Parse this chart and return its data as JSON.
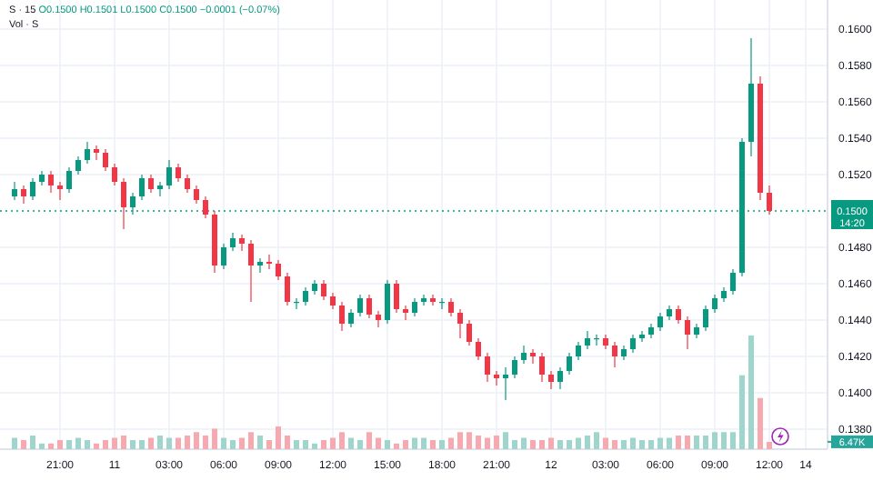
{
  "chart_data": {
    "type": "candlestick",
    "title": "S · 15",
    "y2label": "Vol · S",
    "annotations": [
      "O0.1500 H0.1501 L0.1500 C0.1500 −0.0001 (−0.07%)",
      "14:20"
    ],
    "categories": [
      null,
      null,
      null,
      null,
      null,
      "21:00",
      null,
      null,
      null,
      null,
      null,
      "11",
      null,
      null,
      null,
      null,
      null,
      "03:00",
      null,
      null,
      null,
      null,
      null,
      "06:00",
      null,
      null,
      null,
      null,
      null,
      "09:00",
      null,
      null,
      null,
      null,
      null,
      "12:00",
      null,
      null,
      null,
      null,
      null,
      "15:00",
      null,
      null,
      null,
      null,
      null,
      "18:00",
      null,
      null,
      null,
      null,
      null,
      "21:00",
      null,
      null,
      null,
      null,
      null,
      "12",
      null,
      null,
      null,
      null,
      null,
      "03:00",
      null,
      null,
      null,
      null,
      null,
      "06:00",
      null,
      null,
      null,
      null,
      null,
      "09:00",
      null,
      null,
      null,
      null,
      null,
      "12:00",
      null,
      null,
      null,
      "14"
    ],
    "ylim": [
      0.1369,
      0.1616
    ],
    "y2lim": [
      0,
      395
    ],
    "yticks": [
      {
        "value": 0.138,
        "label": "0.1380"
      },
      {
        "value": 0.14,
        "label": "0.1400"
      },
      {
        "value": 0.142,
        "label": "0.1420"
      },
      {
        "value": 0.144,
        "label": "0.1440"
      },
      {
        "value": 0.146,
        "label": "0.1460"
      },
      {
        "value": 0.148,
        "label": "0.1480"
      },
      {
        "value": 0.152,
        "label": "0.1520"
      },
      {
        "value": 0.154,
        "label": "0.1540"
      },
      {
        "value": 0.156,
        "label": "0.1560"
      },
      {
        "value": 0.158,
        "label": "0.1580"
      },
      {
        "value": 0.16,
        "label": "0.1600"
      }
    ],
    "y2ticks": [
      {
        "value": 6.47,
        "label": "6.47K"
      }
    ],
    "grid": true,
    "ref_lines": [
      {
        "axis": "y",
        "value": 0.15,
        "label": "0.1500",
        "color": "#089981",
        "line_style": "dotted"
      }
    ],
    "series": [
      {
        "type": "candlestick",
        "colors": [
          "#089981",
          "#f23645",
          "#089981",
          "#089981",
          "#f23645",
          "#f23645",
          "#089981",
          "#089981",
          "#089981",
          "#f23645",
          "#f23645",
          "#f23645",
          "#f23645",
          "#089981",
          "#089981",
          "#f23645",
          "#089981",
          "#089981",
          "#f23645",
          "#f23645",
          "#f23645",
          "#f23645",
          "#f23645",
          "#089981",
          "#089981",
          "#f23645",
          "#f23645",
          "#089981",
          "#f23645",
          "#f23645",
          "#f23645",
          "#089981",
          "#089981",
          "#089981",
          "#f23645",
          "#f23645",
          "#f23645",
          "#089981",
          "#089981",
          "#f23645",
          "#f23645",
          "#089981",
          "#f23645",
          "#f23645",
          "#089981",
          "#089981",
          "#f23645",
          "#089981",
          "#f23645",
          "#f23645",
          "#f23645",
          "#f23645",
          "#f23645",
          "#f23645",
          "#089981",
          "#089981",
          "#089981",
          "#f23645",
          "#f23645",
          "#f23645",
          "#089981",
          "#089981",
          "#089981",
          "#089981",
          "#089981",
          "#f23645",
          "#f23645",
          "#089981",
          "#089981",
          "#089981",
          "#089981",
          "#089981",
          "#089981",
          "#f23645",
          "#f23645",
          "#089981",
          "#089981",
          "#089981",
          "#089981",
          "#089981",
          "#089981",
          "#089981",
          "#f23645",
          "#f23645",
          null,
          null,
          null,
          null
        ],
        "ohlc": [
          [
            0.1508,
            0.1516,
            0.1506,
            0.1512
          ],
          [
            0.1512,
            0.1514,
            0.1504,
            0.1508
          ],
          [
            0.1508,
            0.1518,
            0.1506,
            0.1516
          ],
          [
            0.1516,
            0.1522,
            0.1514,
            0.152
          ],
          [
            0.152,
            0.1522,
            0.151,
            0.1514
          ],
          [
            0.1514,
            0.1516,
            0.1506,
            0.1512
          ],
          [
            0.1512,
            0.1524,
            0.151,
            0.1522
          ],
          [
            0.1522,
            0.153,
            0.152,
            0.1528
          ],
          [
            0.1528,
            0.1538,
            0.1526,
            0.1534
          ],
          [
            0.1534,
            0.1536,
            0.1528,
            0.1532
          ],
          [
            0.1532,
            0.1534,
            0.1522,
            0.1524
          ],
          [
            0.1524,
            0.1526,
            0.1514,
            0.1516
          ],
          [
            0.1516,
            0.1518,
            0.149,
            0.1502
          ],
          [
            0.1502,
            0.151,
            0.1498,
            0.1508
          ],
          [
            0.1508,
            0.152,
            0.1506,
            0.1518
          ],
          [
            0.1518,
            0.152,
            0.151,
            0.1512
          ],
          [
            0.1512,
            0.1516,
            0.1508,
            0.1514
          ],
          [
            0.1514,
            0.1528,
            0.1512,
            0.1524
          ],
          [
            0.1524,
            0.1526,
            0.1516,
            0.1518
          ],
          [
            0.1518,
            0.152,
            0.151,
            0.1512
          ],
          [
            0.1512,
            0.1514,
            0.1504,
            0.1506
          ],
          [
            0.1506,
            0.1508,
            0.1496,
            0.1498
          ],
          [
            0.1498,
            0.15,
            0.1466,
            0.147
          ],
          [
            0.147,
            0.1482,
            0.1468,
            0.148
          ],
          [
            0.148,
            0.1488,
            0.1478,
            0.1485
          ],
          [
            0.1485,
            0.1487,
            0.1478,
            0.1482
          ],
          [
            0.1482,
            0.1484,
            0.145,
            0.147
          ],
          [
            0.147,
            0.1474,
            0.1466,
            0.1472
          ],
          [
            0.1472,
            0.1476,
            0.1468,
            0.1471
          ],
          [
            0.1471,
            0.1473,
            0.1462,
            0.1464
          ],
          [
            0.1464,
            0.1466,
            0.1448,
            0.145
          ],
          [
            0.145,
            0.1452,
            0.1446,
            0.145
          ],
          [
            0.145,
            0.1458,
            0.1448,
            0.1456
          ],
          [
            0.1456,
            0.1462,
            0.1454,
            0.146
          ],
          [
            0.146,
            0.1462,
            0.1451,
            0.1453
          ],
          [
            0.1453,
            0.1455,
            0.1446,
            0.1448
          ],
          [
            0.1448,
            0.145,
            0.1434,
            0.1438
          ],
          [
            0.1438,
            0.1446,
            0.1436,
            0.1444
          ],
          [
            0.1444,
            0.1454,
            0.1442,
            0.1452
          ],
          [
            0.1452,
            0.1454,
            0.1441,
            0.1443
          ],
          [
            0.1443,
            0.1445,
            0.1436,
            0.144
          ],
          [
            0.144,
            0.1462,
            0.1438,
            0.146
          ],
          [
            0.146,
            0.1462,
            0.1444,
            0.1446
          ],
          [
            0.1446,
            0.1448,
            0.144,
            0.1444
          ],
          [
            0.1444,
            0.1452,
            0.1442,
            0.145
          ],
          [
            0.145,
            0.1454,
            0.1448,
            0.1452
          ],
          [
            0.1452,
            0.1454,
            0.1448,
            0.145
          ],
          [
            0.145,
            0.1452,
            0.1446,
            0.145
          ],
          [
            0.145,
            0.1452,
            0.1442,
            0.1444
          ],
          [
            0.1444,
            0.1446,
            0.143,
            0.1438
          ],
          [
            0.1438,
            0.144,
            0.1426,
            0.1428
          ],
          [
            0.1428,
            0.143,
            0.1418,
            0.142
          ],
          [
            0.142,
            0.1422,
            0.1406,
            0.141
          ],
          [
            0.141,
            0.1412,
            0.1404,
            0.1408
          ],
          [
            0.1408,
            0.1414,
            0.1396,
            0.141
          ],
          [
            0.141,
            0.142,
            0.1408,
            0.1418
          ],
          [
            0.1418,
            0.1426,
            0.1416,
            0.1422
          ],
          [
            0.1422,
            0.1424,
            0.1416,
            0.142
          ],
          [
            0.142,
            0.1422,
            0.1406,
            0.141
          ],
          [
            0.141,
            0.1412,
            0.1402,
            0.1406
          ],
          [
            0.1406,
            0.1414,
            0.1402,
            0.1412
          ],
          [
            0.1412,
            0.1422,
            0.141,
            0.142
          ],
          [
            0.142,
            0.1428,
            0.1418,
            0.1426
          ],
          [
            0.1426,
            0.1434,
            0.1424,
            0.143
          ],
          [
            0.143,
            0.1432,
            0.1426,
            0.143
          ],
          [
            0.143,
            0.1432,
            0.1424,
            0.1426
          ],
          [
            0.1426,
            0.1428,
            0.1414,
            0.142
          ],
          [
            0.142,
            0.1426,
            0.1418,
            0.1424
          ],
          [
            0.1424,
            0.1432,
            0.1422,
            0.143
          ],
          [
            0.143,
            0.1434,
            0.1428,
            0.1432
          ],
          [
            0.1432,
            0.1438,
            0.143,
            0.1436
          ],
          [
            0.1436,
            0.1444,
            0.1434,
            0.1442
          ],
          [
            0.1442,
            0.1448,
            0.144,
            0.1446
          ],
          [
            0.1446,
            0.1448,
            0.1438,
            0.144
          ],
          [
            0.144,
            0.1442,
            0.1424,
            0.1432
          ],
          [
            0.1432,
            0.1438,
            0.143,
            0.1436
          ],
          [
            0.1436,
            0.1448,
            0.1434,
            0.1446
          ],
          [
            0.1446,
            0.1454,
            0.1444,
            0.1452
          ],
          [
            0.1452,
            0.1458,
            0.145,
            0.1456
          ],
          [
            0.1456,
            0.1468,
            0.1454,
            0.1466
          ],
          [
            0.1466,
            0.154,
            0.1464,
            0.1538
          ],
          [
            0.1538,
            0.1595,
            0.153,
            0.157
          ],
          [
            0.157,
            0.1574,
            0.1506,
            0.151
          ],
          [
            0.151,
            0.1514,
            0.1498,
            0.15
          ],
          null,
          null,
          null,
          null
        ]
      },
      {
        "type": "bar",
        "axis": "y2",
        "values": [
          10,
          8,
          12,
          5,
          5,
          8,
          8,
          10,
          8,
          5,
          8,
          10,
          12,
          8,
          8,
          10,
          12,
          10,
          10,
          12,
          15,
          12,
          18,
          10,
          8,
          10,
          15,
          12,
          8,
          20,
          12,
          8,
          8,
          5,
          8,
          10,
          15,
          10,
          8,
          15,
          10,
          8,
          5,
          8,
          10,
          10,
          8,
          8,
          10,
          15,
          15,
          12,
          10,
          12,
          15,
          8,
          10,
          8,
          8,
          10,
          8,
          8,
          10,
          12,
          15,
          10,
          8,
          8,
          10,
          8,
          8,
          10,
          10,
          12,
          12,
          12,
          12,
          15,
          15,
          15,
          65,
          100,
          45,
          6.47,
          null,
          null,
          null,
          null
        ],
        "colors": [
          "#9ed6cd",
          "#f7a9af",
          "#9ed6cd",
          "#9ed6cd",
          "#f7a9af",
          "#f7a9af",
          "#9ed6cd",
          "#9ed6cd",
          "#9ed6cd",
          "#f7a9af",
          "#f7a9af",
          "#f7a9af",
          "#f7a9af",
          "#9ed6cd",
          "#9ed6cd",
          "#f7a9af",
          "#9ed6cd",
          "#9ed6cd",
          "#f7a9af",
          "#f7a9af",
          "#f7a9af",
          "#f7a9af",
          "#f7a9af",
          "#9ed6cd",
          "#9ed6cd",
          "#f7a9af",
          "#f7a9af",
          "#9ed6cd",
          "#f7a9af",
          "#f7a9af",
          "#f7a9af",
          "#9ed6cd",
          "#9ed6cd",
          "#9ed6cd",
          "#f7a9af",
          "#f7a9af",
          "#f7a9af",
          "#9ed6cd",
          "#9ed6cd",
          "#f7a9af",
          "#f7a9af",
          "#9ed6cd",
          "#f7a9af",
          "#f7a9af",
          "#9ed6cd",
          "#9ed6cd",
          "#f7a9af",
          "#9ed6cd",
          "#f7a9af",
          "#f7a9af",
          "#f7a9af",
          "#f7a9af",
          "#f7a9af",
          "#f7a9af",
          "#9ed6cd",
          "#9ed6cd",
          "#9ed6cd",
          "#f7a9af",
          "#f7a9af",
          "#f7a9af",
          "#9ed6cd",
          "#9ed6cd",
          "#9ed6cd",
          "#9ed6cd",
          "#9ed6cd",
          "#f7a9af",
          "#f7a9af",
          "#9ed6cd",
          "#9ed6cd",
          "#9ed6cd",
          "#9ed6cd",
          "#9ed6cd",
          "#9ed6cd",
          "#f7a9af",
          "#f7a9af",
          "#9ed6cd",
          "#9ed6cd",
          "#9ed6cd",
          "#9ed6cd",
          "#9ed6cd",
          "#9ed6cd",
          "#9ed6cd",
          "#f7a9af",
          "#f7a9af",
          null,
          null,
          null,
          null
        ]
      }
    ]
  }
}
